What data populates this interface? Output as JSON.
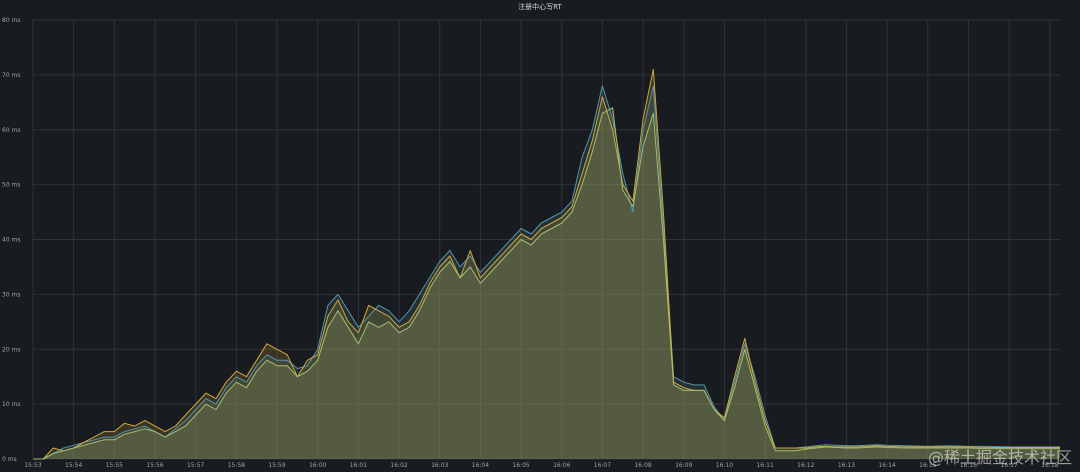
{
  "chart_data": {
    "type": "area",
    "title": "注册中心写RT",
    "xlabel": "",
    "ylabel": "",
    "ylim": [
      0,
      80
    ],
    "y_ticks": [
      "0 ms",
      "10 ms",
      "20 ms",
      "30 ms",
      "40 ms",
      "50 ms",
      "60 ms",
      "70 ms",
      "80 ms"
    ],
    "x_ticks": [
      "15:53",
      "15:54",
      "15:55",
      "15:56",
      "15:57",
      "15:58",
      "15:59",
      "16:00",
      "16:01",
      "16:02",
      "16:03",
      "16:04",
      "16:05",
      "16:06",
      "16:07",
      "16:08",
      "16:09",
      "16:10",
      "16:11",
      "16:12",
      "16:13",
      "16:14",
      "16:15",
      "16:16",
      "16:17",
      "16:18"
    ],
    "grid": true,
    "legend": "none",
    "series": [
      {
        "color": "#5794a8",
        "x": [
          0,
          0.25,
          0.5,
          0.75,
          1,
          1.25,
          1.5,
          1.75,
          2,
          2.25,
          2.5,
          2.75,
          3,
          3.25,
          3.5,
          3.75,
          4,
          4.25,
          4.5,
          4.75,
          5,
          5.25,
          5.5,
          5.75,
          6,
          6.25,
          6.5,
          6.75,
          7,
          7.25,
          7.5,
          7.75,
          8,
          8.25,
          8.5,
          8.75,
          9,
          9.25,
          9.5,
          9.75,
          10,
          10.25,
          10.5,
          10.75,
          11,
          11.25,
          11.5,
          11.75,
          12,
          12.25,
          12.5,
          12.75,
          13,
          13.25,
          13.5,
          13.75,
          14,
          14.25,
          14.5,
          14.75,
          15,
          15.25,
          15.5,
          15.75,
          16,
          16.25,
          16.5,
          16.75,
          17,
          17.25,
          17.5,
          17.75,
          18,
          18.25,
          18.5,
          18.75,
          19,
          19.25,
          19.5,
          19.75,
          20,
          20.25,
          20.5,
          20.75,
          21,
          21.5,
          22,
          22.5,
          23,
          23.5,
          24,
          24.5,
          25,
          25.25
        ],
        "values": [
          0,
          0,
          1,
          2,
          2.5,
          3,
          3.5,
          4,
          4,
          5,
          5.5,
          6,
          5,
          4,
          5.5,
          7,
          9,
          11,
          10,
          13,
          15,
          14,
          17,
          19,
          18,
          18,
          16.5,
          17,
          20,
          28,
          30,
          27,
          24,
          26,
          28,
          27,
          25,
          27,
          30,
          33,
          36,
          38,
          35,
          37,
          34,
          36,
          38,
          40,
          42,
          41,
          43,
          44,
          45,
          47,
          55,
          60,
          68,
          62,
          52,
          45,
          60,
          68,
          42,
          15,
          14,
          13.5,
          13.5,
          9.5,
          7,
          14,
          21,
          15,
          8,
          2,
          2,
          2,
          2.2,
          2.4,
          2.6,
          2.5,
          2.4,
          2.4,
          2.5,
          2.6,
          2.5,
          2.4,
          2.3,
          2.4,
          2.3,
          2.3,
          2.2,
          2.2,
          2.2,
          2.2
        ]
      },
      {
        "color": "#d2a93a",
        "x": [
          0,
          0.25,
          0.5,
          0.75,
          1,
          1.25,
          1.5,
          1.75,
          2,
          2.25,
          2.5,
          2.75,
          3,
          3.25,
          3.5,
          3.75,
          4,
          4.25,
          4.5,
          4.75,
          5,
          5.25,
          5.5,
          5.75,
          6,
          6.25,
          6.5,
          6.75,
          7,
          7.25,
          7.5,
          7.75,
          8,
          8.25,
          8.5,
          8.75,
          9,
          9.25,
          9.5,
          9.75,
          10,
          10.25,
          10.5,
          10.75,
          11,
          11.25,
          11.5,
          11.75,
          12,
          12.25,
          12.5,
          12.75,
          13,
          13.25,
          13.5,
          13.75,
          14,
          14.25,
          14.5,
          14.75,
          15,
          15.25,
          15.5,
          15.75,
          16,
          16.25,
          16.5,
          16.75,
          17,
          17.25,
          17.5,
          17.75,
          18,
          18.25,
          18.5,
          18.75,
          19,
          19.25,
          19.5,
          19.75,
          20,
          20.25,
          20.5,
          20.75,
          21,
          21.5,
          22,
          22.5,
          23,
          23.5,
          24,
          24.5,
          25,
          25.25
        ],
        "values": [
          0,
          0,
          2,
          1.5,
          2,
          3,
          4,
          5,
          5,
          6.5,
          6,
          7,
          6,
          5,
          6,
          8,
          10,
          12,
          11,
          14,
          16,
          15,
          18,
          21,
          20,
          19,
          15,
          18,
          19,
          26,
          29,
          25,
          23,
          28,
          27,
          26,
          24,
          25,
          28,
          32,
          35,
          37,
          33,
          38,
          33,
          35,
          37,
          39,
          41,
          40,
          42,
          43,
          44,
          46,
          52,
          58,
          66,
          60,
          50,
          47,
          62,
          71,
          45,
          14,
          13,
          12.5,
          12.5,
          9,
          7.5,
          15,
          22,
          14,
          7,
          2,
          2,
          2,
          2,
          2.2,
          2.3,
          2.2,
          2.2,
          2.2,
          2.3,
          2.4,
          2.3,
          2.2,
          2.2,
          2.2,
          2.2,
          2.1,
          2.1,
          2.1,
          2.1,
          2.1
        ]
      },
      {
        "color": "#a9bd6b",
        "x": [
          0,
          0.25,
          0.5,
          0.75,
          1,
          1.25,
          1.5,
          1.75,
          2,
          2.25,
          2.5,
          2.75,
          3,
          3.25,
          3.5,
          3.75,
          4,
          4.25,
          4.5,
          4.75,
          5,
          5.25,
          5.5,
          5.75,
          6,
          6.25,
          6.5,
          6.75,
          7,
          7.25,
          7.5,
          7.75,
          8,
          8.25,
          8.5,
          8.75,
          9,
          9.25,
          9.5,
          9.75,
          10,
          10.25,
          10.5,
          10.75,
          11,
          11.25,
          11.5,
          11.75,
          12,
          12.25,
          12.5,
          12.75,
          13,
          13.25,
          13.5,
          13.75,
          14,
          14.25,
          14.5,
          14.75,
          15,
          15.25,
          15.5,
          15.75,
          16,
          16.25,
          16.5,
          16.75,
          17,
          17.25,
          17.5,
          17.75,
          18,
          18.25,
          18.5,
          18.75,
          19,
          19.25,
          19.5,
          19.75,
          20,
          20.25,
          20.5,
          20.75,
          21,
          21.5,
          22,
          22.5,
          23,
          23.5,
          24,
          24.5,
          25,
          25.25
        ],
        "values": [
          0,
          0,
          1,
          1.5,
          2,
          2.5,
          3,
          3.5,
          3.5,
          4.5,
          5,
          5.5,
          5,
          4,
          5,
          6,
          8,
          10,
          9,
          12,
          14,
          13,
          16,
          18,
          17,
          17,
          15,
          16,
          18,
          24,
          27,
          24,
          21,
          25,
          24,
          25,
          23,
          24,
          27,
          31,
          34,
          36,
          33,
          35,
          32,
          34,
          36,
          38,
          40,
          39,
          41,
          42,
          43,
          45,
          50,
          56,
          63,
          64,
          49,
          46,
          57,
          63,
          40,
          13.5,
          12.5,
          12.5,
          12.5,
          9,
          7,
          13,
          20,
          13,
          6,
          1.5,
          1.5,
          1.5,
          1.8,
          2,
          2.2,
          2.1,
          2,
          2,
          2.1,
          2.2,
          2.1,
          2,
          2,
          2,
          2,
          1.9,
          1.9,
          1.9,
          1.9,
          1.9
        ]
      }
    ]
  },
  "watermark": "@稀土掘金技术社区"
}
